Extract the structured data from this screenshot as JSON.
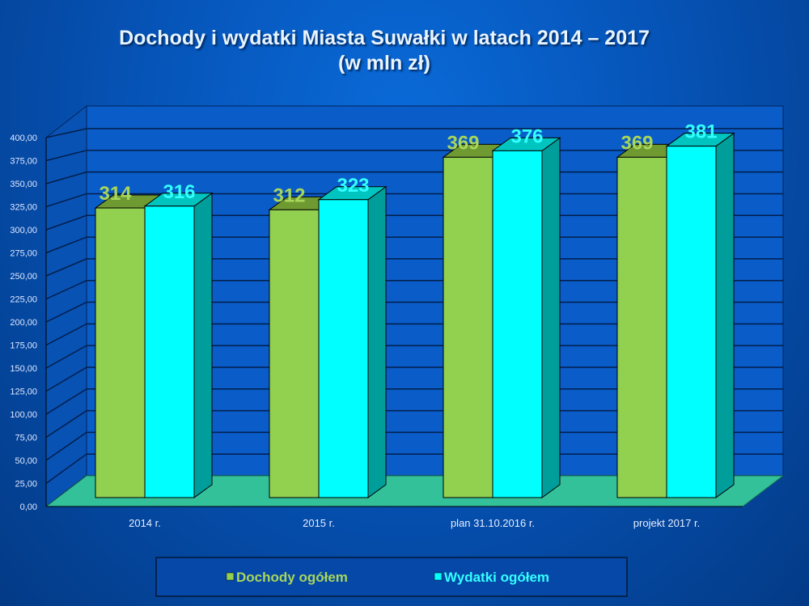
{
  "chart_data": {
    "type": "bar",
    "title": "Dochody i wydatki Miasta Suwałki w latach 2014 – 2017",
    "subtitle": "(w mln zł)",
    "categories": [
      "2014 r.",
      "2015 r.",
      "plan 31.10.2016 r.",
      "projekt 2017 r."
    ],
    "series": [
      {
        "name": "Dochody ogółem",
        "values": [
          314,
          312,
          369,
          369
        ],
        "labels": [
          "314",
          "312",
          "369",
          "369"
        ],
        "color": "#92d050",
        "top": "#6f9a32",
        "label_color": "#a8d65a"
      },
      {
        "name": "Wydatki ogółem",
        "values": [
          316,
          323,
          376,
          381
        ],
        "labels": [
          "316",
          "323",
          "376",
          "381"
        ],
        "color": "#00ffff",
        "top": "#00c4c0",
        "side": "#009e9a",
        "label_color": "#33ffff"
      }
    ],
    "ylim": [
      0,
      400
    ],
    "yticks": [
      "0,00",
      "25,00",
      "50,00",
      "75,00",
      "100,00",
      "125,00",
      "150,00",
      "175,00",
      "200,00",
      "225,00",
      "250,00",
      "275,00",
      "300,00",
      "325,00",
      "350,00",
      "375,00",
      "400,00"
    ],
    "grid": true,
    "legend": "bottom"
  }
}
